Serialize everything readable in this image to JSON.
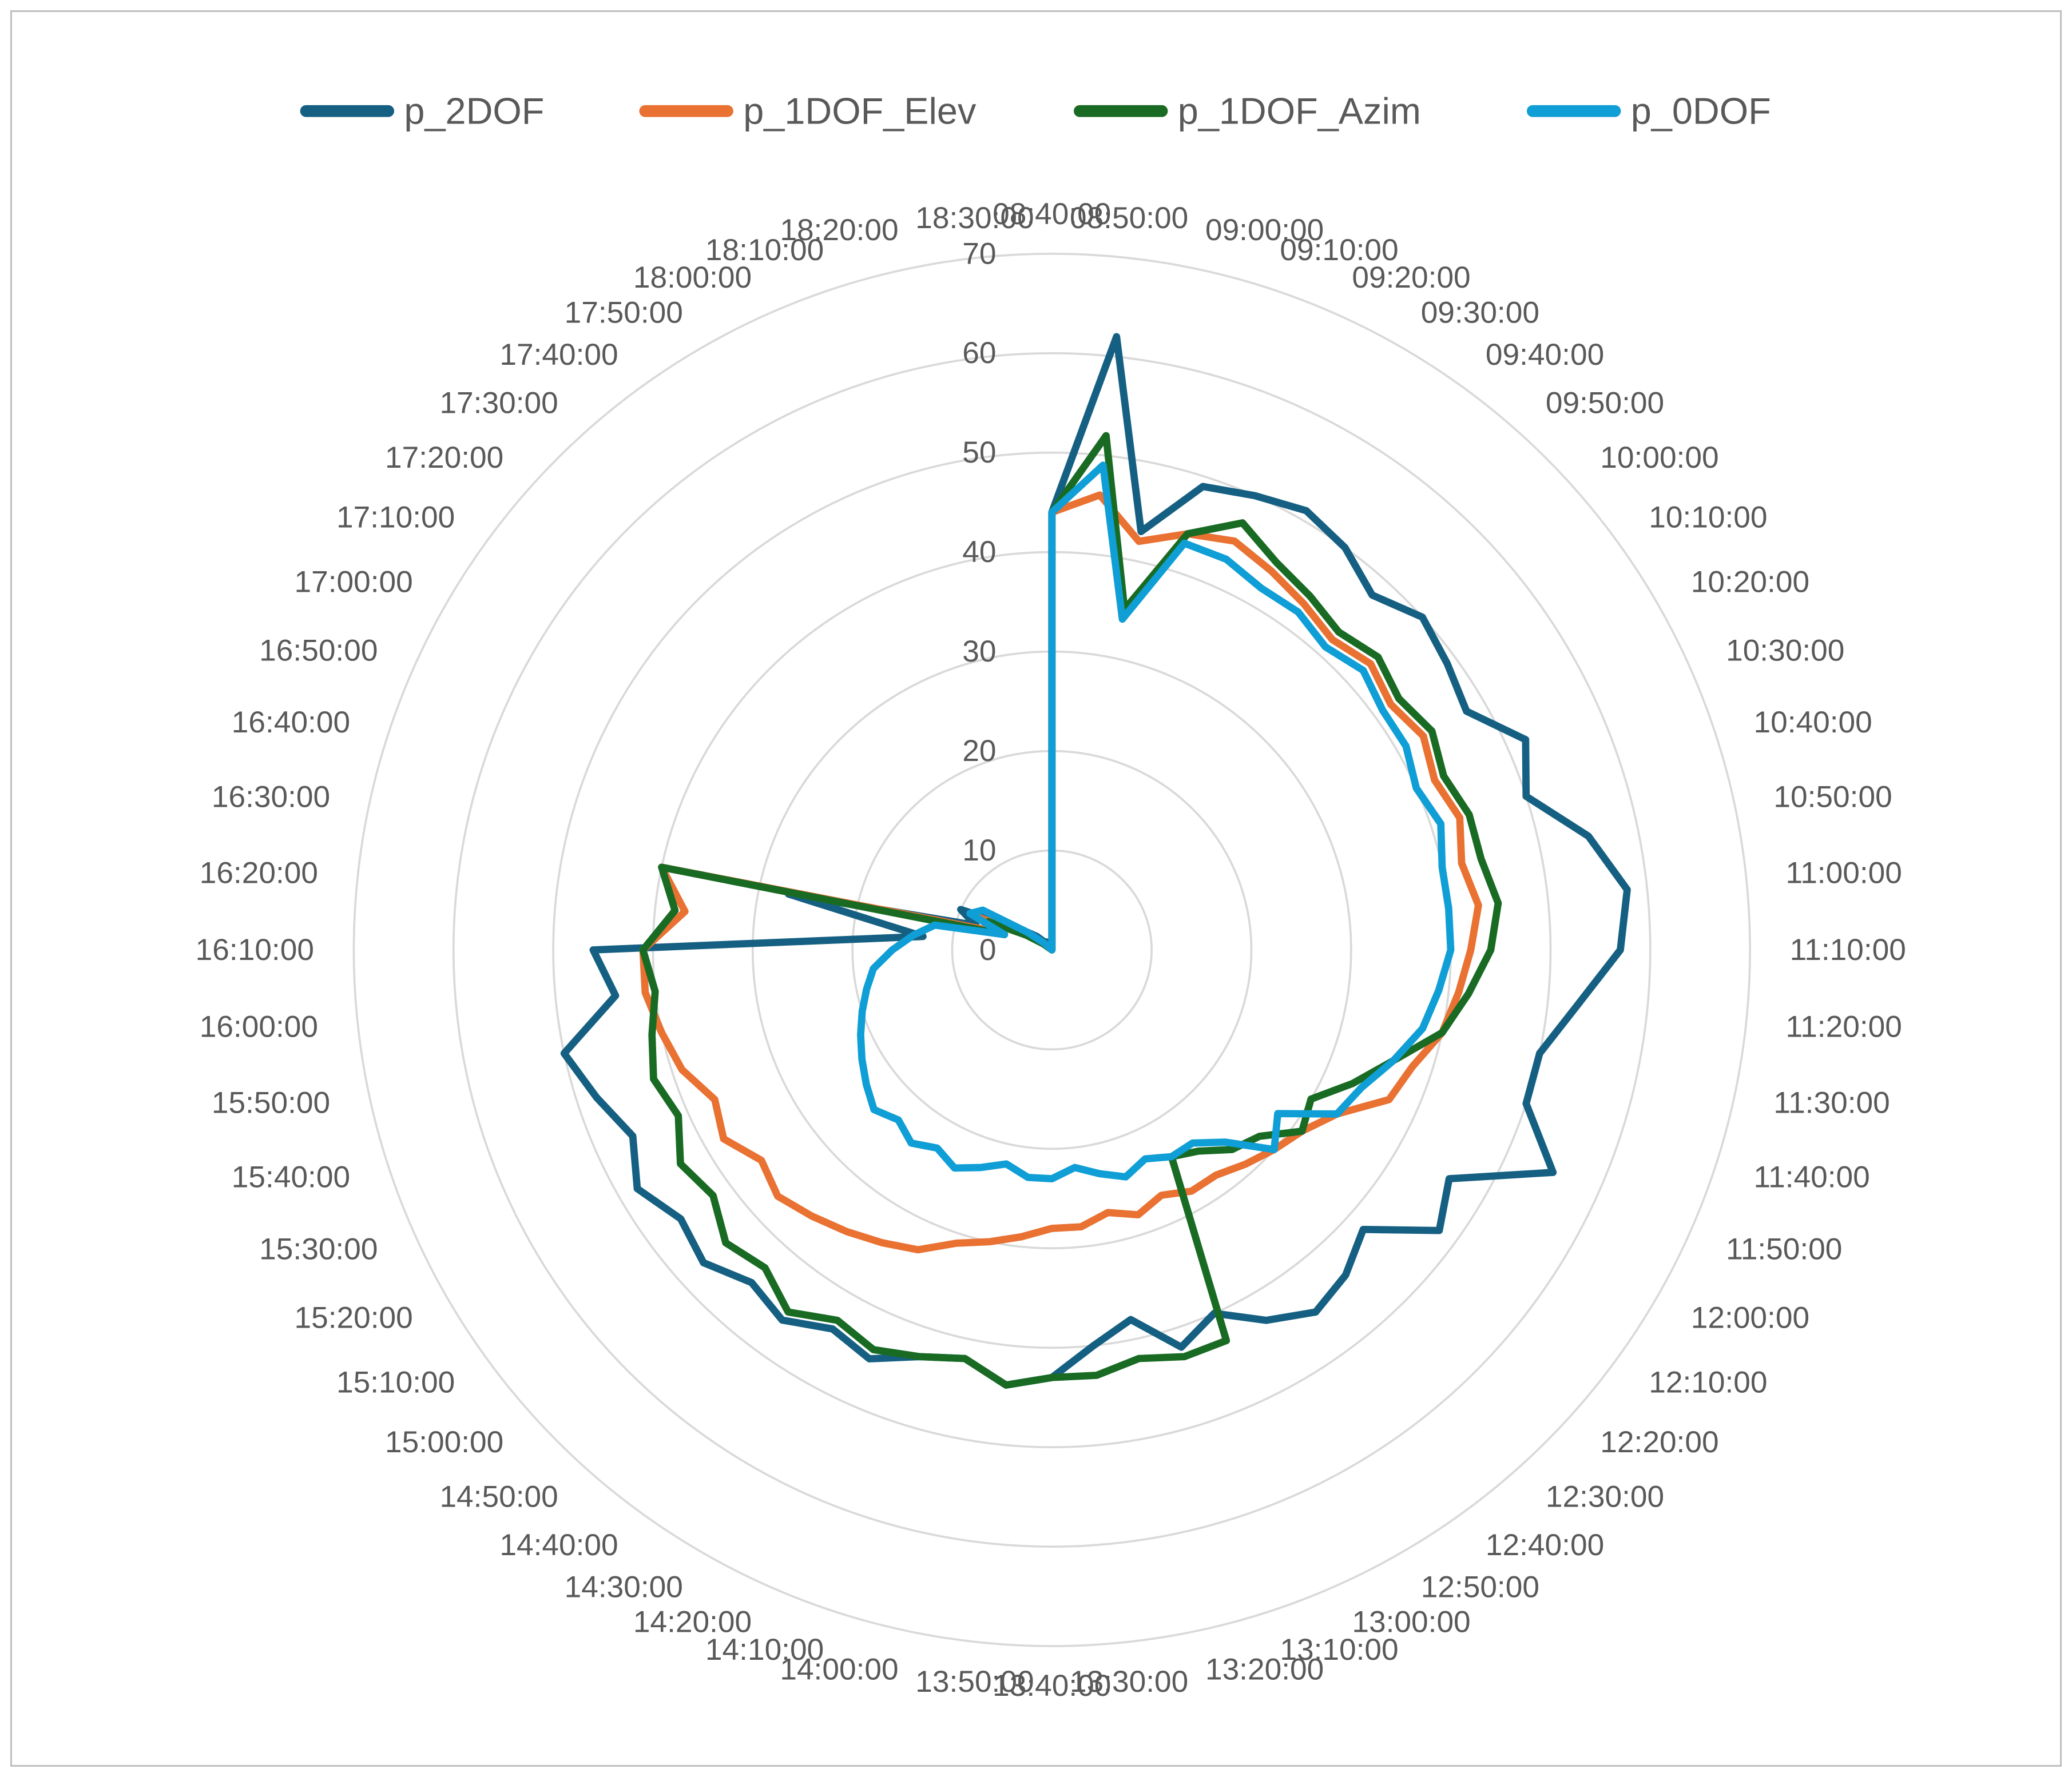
{
  "frame": {
    "background": "#ffffff",
    "border_color": "#bfbfbf"
  },
  "legend": {
    "position": "top",
    "items": [
      {
        "label": "p_2DOF",
        "color": "#156082"
      },
      {
        "label": "p_1DOF_Elev",
        "color": "#E97132"
      },
      {
        "label": "p_1DOF_Azim",
        "color": "#196B24"
      },
      {
        "label": "p_0DOF",
        "color": "#0F9ED5"
      }
    ]
  },
  "style": {
    "grid_color": "#d9d9d9",
    "label_color": "#595959",
    "background": "#ffffff"
  },
  "chart_data": {
    "type": "line",
    "subtype": "radar-polar",
    "title": "",
    "xlabel": "",
    "ylabel": "",
    "start_angle": "top",
    "direction": "clockwise",
    "grid": true,
    "legend_position": "top",
    "radial_axis": {
      "min": 0,
      "max": 70,
      "step": 10,
      "tick_labels": [
        "0",
        "10",
        "20",
        "30",
        "40",
        "50",
        "60",
        "70"
      ]
    },
    "categories": [
      "08:40:00",
      "08:50:00",
      "09:00:00",
      "09:10:00",
      "09:20:00",
      "09:30:00",
      "09:40:00",
      "09:50:00",
      "10:00:00",
      "10:10:00",
      "10:20:00",
      "10:30:00",
      "10:40:00",
      "10:50:00",
      "11:00:00",
      "11:10:00",
      "11:20:00",
      "11:30:00",
      "11:40:00",
      "11:50:00",
      "12:00:00",
      "12:10:00",
      "12:20:00",
      "12:30:00",
      "12:40:00",
      "12:50:00",
      "13:00:00",
      "13:10:00",
      "13:20:00",
      "13:30:00",
      "13:40:00",
      "13:50:00",
      "14:00:00",
      "14:10:00",
      "14:20:00",
      "14:30:00",
      "14:40:00",
      "14:50:00",
      "15:00:00",
      "15:10:00",
      "15:20:00",
      "15:30:00",
      "15:40:00",
      "15:50:00",
      "16:00:00",
      "16:10:00",
      "16:20:00",
      "16:30:00",
      "16:40:00",
      "16:50:00",
      "17:00:00",
      "17:10:00",
      "17:20:00",
      "17:30:00",
      "17:40:00",
      "17:50:00",
      "18:00:00",
      "18:10:00",
      "18:20:00",
      "18:30:00"
    ],
    "series": [
      {
        "name": "p_2DOF",
        "color": "#156082",
        "values": [
          44,
          62,
          43,
          49,
          50,
          51,
          50,
          48,
          50,
          49,
          48,
          52,
          50,
          55,
          58,
          57,
          53,
          50,
          50,
          55,
          46,
          48,
          42,
          44,
          45,
          43,
          40,
          42,
          38,
          40,
          43,
          44,
          42,
          43,
          45,
          44,
          46,
          45,
          47,
          46,
          48,
          46,
          48,
          50,
          44,
          46,
          13,
          27,
          8,
          10,
          5,
          3,
          2,
          1,
          1,
          0,
          0,
          0,
          0,
          0
        ]
      },
      {
        "name": "p_1DOF_Elev",
        "color": "#E97132",
        "values": [
          44,
          46,
          42,
          44,
          45,
          44,
          43,
          42,
          43,
          42,
          43,
          42,
          43,
          42,
          43,
          42,
          41,
          40,
          38,
          37,
          33,
          31,
          30,
          29,
          28,
          28,
          27,
          28,
          27,
          28,
          28,
          29,
          30,
          31,
          33,
          34,
          35,
          36,
          37,
          36,
          38,
          37,
          39,
          40,
          41,
          41,
          37,
          40,
          6,
          8,
          3,
          2,
          1,
          0,
          0,
          0,
          0,
          0,
          0,
          0
        ]
      },
      {
        "name": "p_1DOF_Azim",
        "color": "#196B24",
        "values": [
          44,
          52,
          35,
          44,
          47,
          45,
          44,
          43,
          44,
          43,
          44,
          43,
          44,
          44,
          45,
          44,
          42,
          40,
          36,
          33,
          30,
          31,
          28,
          27,
          25,
          24,
          43,
          43,
          42,
          43,
          43,
          44,
          42,
          43,
          44,
          43,
          45,
          43,
          44,
          42,
          43,
          41,
          42,
          41,
          40,
          41,
          38,
          40,
          5,
          7,
          3,
          1,
          0,
          0,
          0,
          0,
          0,
          0,
          0,
          0
        ]
      },
      {
        "name": "p_0DOF",
        "color": "#0F9ED5",
        "values": [
          44,
          49,
          34,
          43,
          43,
          42,
          42,
          41,
          42,
          41,
          41,
          40,
          41,
          40,
          40,
          40,
          39,
          38,
          36,
          34,
          33,
          28,
          30,
          26,
          24,
          24,
          23,
          24,
          23,
          22,
          23,
          23,
          22,
          23,
          24,
          23,
          24,
          23,
          24,
          23,
          22,
          21,
          20,
          19,
          18,
          16,
          14,
          12,
          5,
          9,
          8,
          3,
          1,
          0,
          0,
          0,
          0,
          0,
          0,
          0
        ]
      }
    ]
  }
}
